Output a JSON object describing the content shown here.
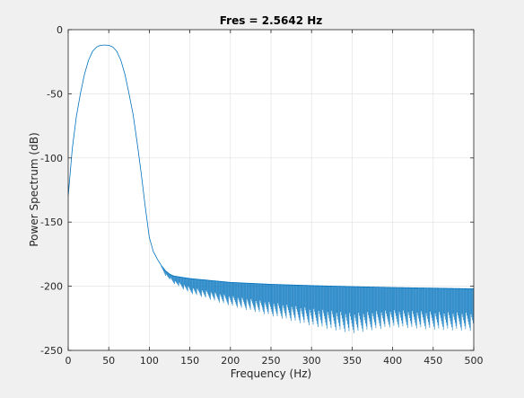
{
  "chart_data": {
    "type": "line",
    "title": "Fres = 2.5642 Hz",
    "xlabel": "Frequency (Hz)",
    "ylabel": "Power Spectrum (dB)",
    "xlim": [
      0,
      500
    ],
    "ylim": [
      -250,
      0
    ],
    "xticks": [
      "0",
      "50",
      "100",
      "150",
      "200",
      "250",
      "300",
      "350",
      "400",
      "450",
      "500"
    ],
    "yticks": [
      "0",
      "-50",
      "-100",
      "-150",
      "-200",
      "-250"
    ],
    "grid": true,
    "line_color": "#0072bd",
    "series": [
      {
        "x": [
          0,
          5,
          10,
          15,
          20,
          25,
          30,
          35,
          40,
          45,
          50,
          55,
          60,
          65,
          70,
          75,
          80,
          85,
          90,
          95,
          100,
          105,
          110,
          115,
          120,
          125,
          130,
          140,
          150,
          175,
          200,
          250,
          300,
          350,
          400,
          450,
          500
        ],
        "y": [
          -130,
          -93,
          -68,
          -50,
          -35,
          -24,
          -17,
          -13.5,
          -12.2,
          -12,
          -12.2,
          -13.5,
          -17,
          -24,
          -35,
          -50,
          -66,
          -88,
          -112,
          -138,
          -162,
          -173,
          -179,
          -184,
          -188,
          -190.5,
          -192,
          -193,
          -194,
          -195.5,
          -197,
          -198.5,
          -199.5,
          -200.3,
          -201,
          -201.5,
          -202
        ],
        "envelope_lower": {
          "x": [
            115,
            120,
            125,
            130,
            140,
            150,
            175,
            200,
            250,
            300,
            350,
            400,
            450,
            500
          ],
          "y": [
            -186,
            -192,
            -195,
            -198,
            -202,
            -206,
            -211,
            -216,
            -224,
            -232,
            -238,
            -233,
            -235,
            -236
          ]
        }
      }
    ]
  }
}
